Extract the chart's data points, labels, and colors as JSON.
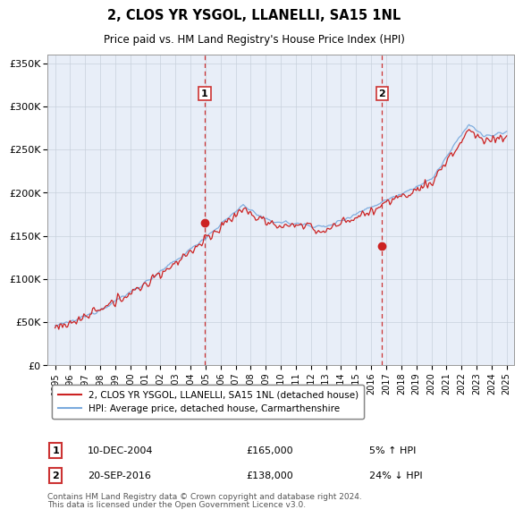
{
  "title": "2, CLOS YR YSGOL, LLANELLI, SA15 1NL",
  "subtitle": "Price paid vs. HM Land Registry's House Price Index (HPI)",
  "legend_line1": "2, CLOS YR YSGOL, LLANELLI, SA15 1NL (detached house)",
  "legend_line2": "HPI: Average price, detached house, Carmarthenshire",
  "annotation1_date": "10-DEC-2004",
  "annotation1_price": "£165,000",
  "annotation1_hpi": "5% ↑ HPI",
  "annotation2_date": "20-SEP-2016",
  "annotation2_price": "£138,000",
  "annotation2_hpi": "24% ↓ HPI",
  "footer_line1": "Contains HM Land Registry data © Crown copyright and database right 2024.",
  "footer_line2": "This data is licensed under the Open Government Licence v3.0.",
  "sale1_x": 2004.94,
  "sale1_y": 165000,
  "sale2_x": 2016.72,
  "sale2_y": 138000,
  "vline1_x": 2004.94,
  "vline2_x": 2016.72,
  "ylim_min": 0,
  "ylim_max": 360000,
  "xlim_min": 1994.5,
  "xlim_max": 2025.5,
  "hpi_color": "#7aaadd",
  "price_color": "#cc2222",
  "vline_color": "#cc3333",
  "bg_color": "#e8eef8",
  "plot_bg": "#ffffff",
  "yticks": [
    0,
    50000,
    100000,
    150000,
    200000,
    250000,
    300000,
    350000
  ],
  "ytick_labels": [
    "£0",
    "£50K",
    "£100K",
    "£150K",
    "£200K",
    "£250K",
    "£300K",
    "£350K"
  ],
  "xticks": [
    1995,
    1996,
    1997,
    1998,
    1999,
    2000,
    2001,
    2002,
    2003,
    2004,
    2005,
    2006,
    2007,
    2008,
    2009,
    2010,
    2011,
    2012,
    2013,
    2014,
    2015,
    2016,
    2017,
    2018,
    2019,
    2020,
    2021,
    2022,
    2023,
    2024,
    2025
  ]
}
